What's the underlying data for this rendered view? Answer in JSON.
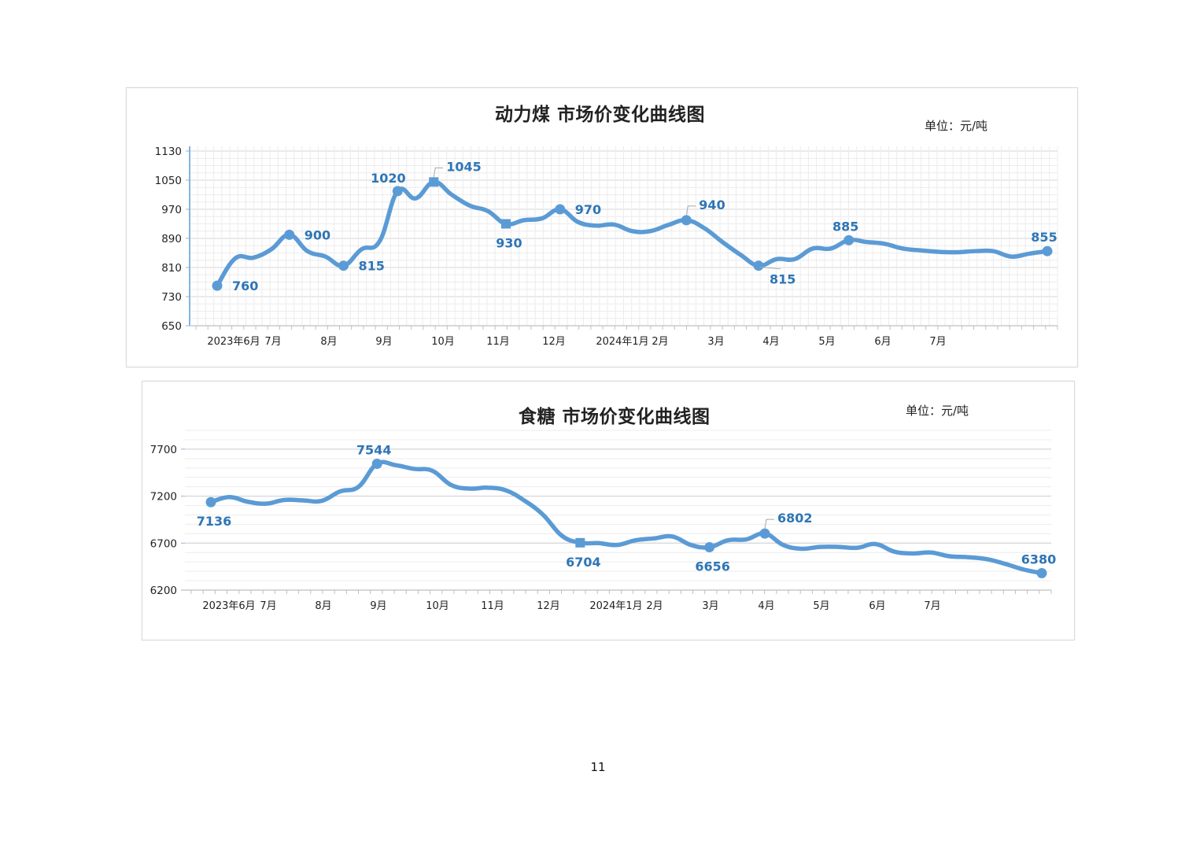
{
  "page": {
    "number": "11"
  },
  "chart_data": [
    {
      "type": "line",
      "title": "动力煤  市场价变化曲线图",
      "unit": "单位：元/吨",
      "color": "#5b9bd5",
      "label_color": "#2e75b6",
      "ylim": [
        650,
        1130
      ],
      "yticks": [
        650,
        730,
        810,
        890,
        970,
        1050,
        1130
      ],
      "xticks": [
        "2023年6月",
        "7月",
        "8月",
        "9月",
        "10月",
        "11月",
        "12月",
        "2024年1月",
        "2月",
        "3月",
        "4月",
        "5月",
        "6月",
        "7月"
      ],
      "xtick_positions": [
        1.5,
        3.5,
        5.5,
        7.5,
        9.5,
        11.5,
        13.5,
        15.5,
        17.5,
        19.5,
        21.5,
        23.5,
        25.5,
        27.5
      ],
      "x_count": 32,
      "grid": true,
      "values": [
        760,
        835,
        837,
        860,
        900,
        855,
        840,
        815,
        860,
        882,
        1020,
        1000,
        1045,
        1010,
        980,
        965,
        930,
        940,
        945,
        970,
        935,
        925,
        928,
        910,
        910,
        927,
        940,
        918,
        880,
        845,
        815,
        833,
        833,
        862,
        862,
        885,
        880,
        875,
        862,
        857,
        853,
        852,
        855,
        855,
        840,
        848,
        855
      ],
      "markers": [
        {
          "index": 0,
          "value": "760",
          "shape": "circle",
          "pos": "right-below"
        },
        {
          "index": 4,
          "value": "900",
          "shape": "circle",
          "pos": "right"
        },
        {
          "index": 7,
          "value": "815",
          "shape": "circle",
          "pos": "right"
        },
        {
          "index": 10,
          "value": "1020",
          "shape": "circle",
          "pos": "above-left"
        },
        {
          "index": 12,
          "value": "1045",
          "shape": "square",
          "pos": "above-right"
        },
        {
          "index": 16,
          "value": "930",
          "shape": "square",
          "pos": "below"
        },
        {
          "index": 19,
          "value": "970",
          "shape": "circle",
          "pos": "right"
        },
        {
          "index": 26,
          "value": "940",
          "shape": "circle",
          "pos": "above-right"
        },
        {
          "index": 30,
          "value": "815",
          "shape": "circle",
          "pos": "below-right"
        },
        {
          "index": 35,
          "value": "885",
          "shape": "circle",
          "pos": "above"
        },
        {
          "index": 46,
          "value": "855",
          "shape": "circle",
          "pos": "above"
        }
      ]
    },
    {
      "type": "line",
      "title": "食糖  市场价变化曲线图",
      "unit": "单位：元/吨",
      "color": "#5b9bd5",
      "label_color": "#2e75b6",
      "ylim": [
        6200,
        7900
      ],
      "yticks": [
        6200,
        6700,
        7200,
        7700
      ],
      "xticks": [
        "2023年6月",
        "7月",
        "8月",
        "9月",
        "10月",
        "11月",
        "12月",
        "2024年1月",
        "2月",
        "3月",
        "4月",
        "5月",
        "6月",
        "7月"
      ],
      "grid": true,
      "values": [
        7136,
        7190,
        7140,
        7120,
        7160,
        7155,
        7150,
        7250,
        7300,
        7544,
        7530,
        7490,
        7470,
        7320,
        7280,
        7290,
        7260,
        7150,
        7000,
        6780,
        6704,
        6700,
        6680,
        6730,
        6750,
        6770,
        6680,
        6656,
        6730,
        6740,
        6802,
        6680,
        6640,
        6660,
        6660,
        6650,
        6690,
        6610,
        6590,
        6600,
        6560,
        6550,
        6530,
        6480,
        6420,
        6380
      ],
      "markers": [
        {
          "index": 0,
          "value": "7136",
          "shape": "circle",
          "pos": "below"
        },
        {
          "index": 9,
          "value": "7544",
          "shape": "circle",
          "pos": "above"
        },
        {
          "index": 20,
          "value": "6704",
          "shape": "square",
          "pos": "below"
        },
        {
          "index": 27,
          "value": "6656",
          "shape": "circle",
          "pos": "below"
        },
        {
          "index": 30,
          "value": "6802",
          "shape": "circle",
          "pos": "above-right"
        },
        {
          "index": 45,
          "value": "6380",
          "shape": "circle",
          "pos": "above"
        }
      ]
    }
  ]
}
